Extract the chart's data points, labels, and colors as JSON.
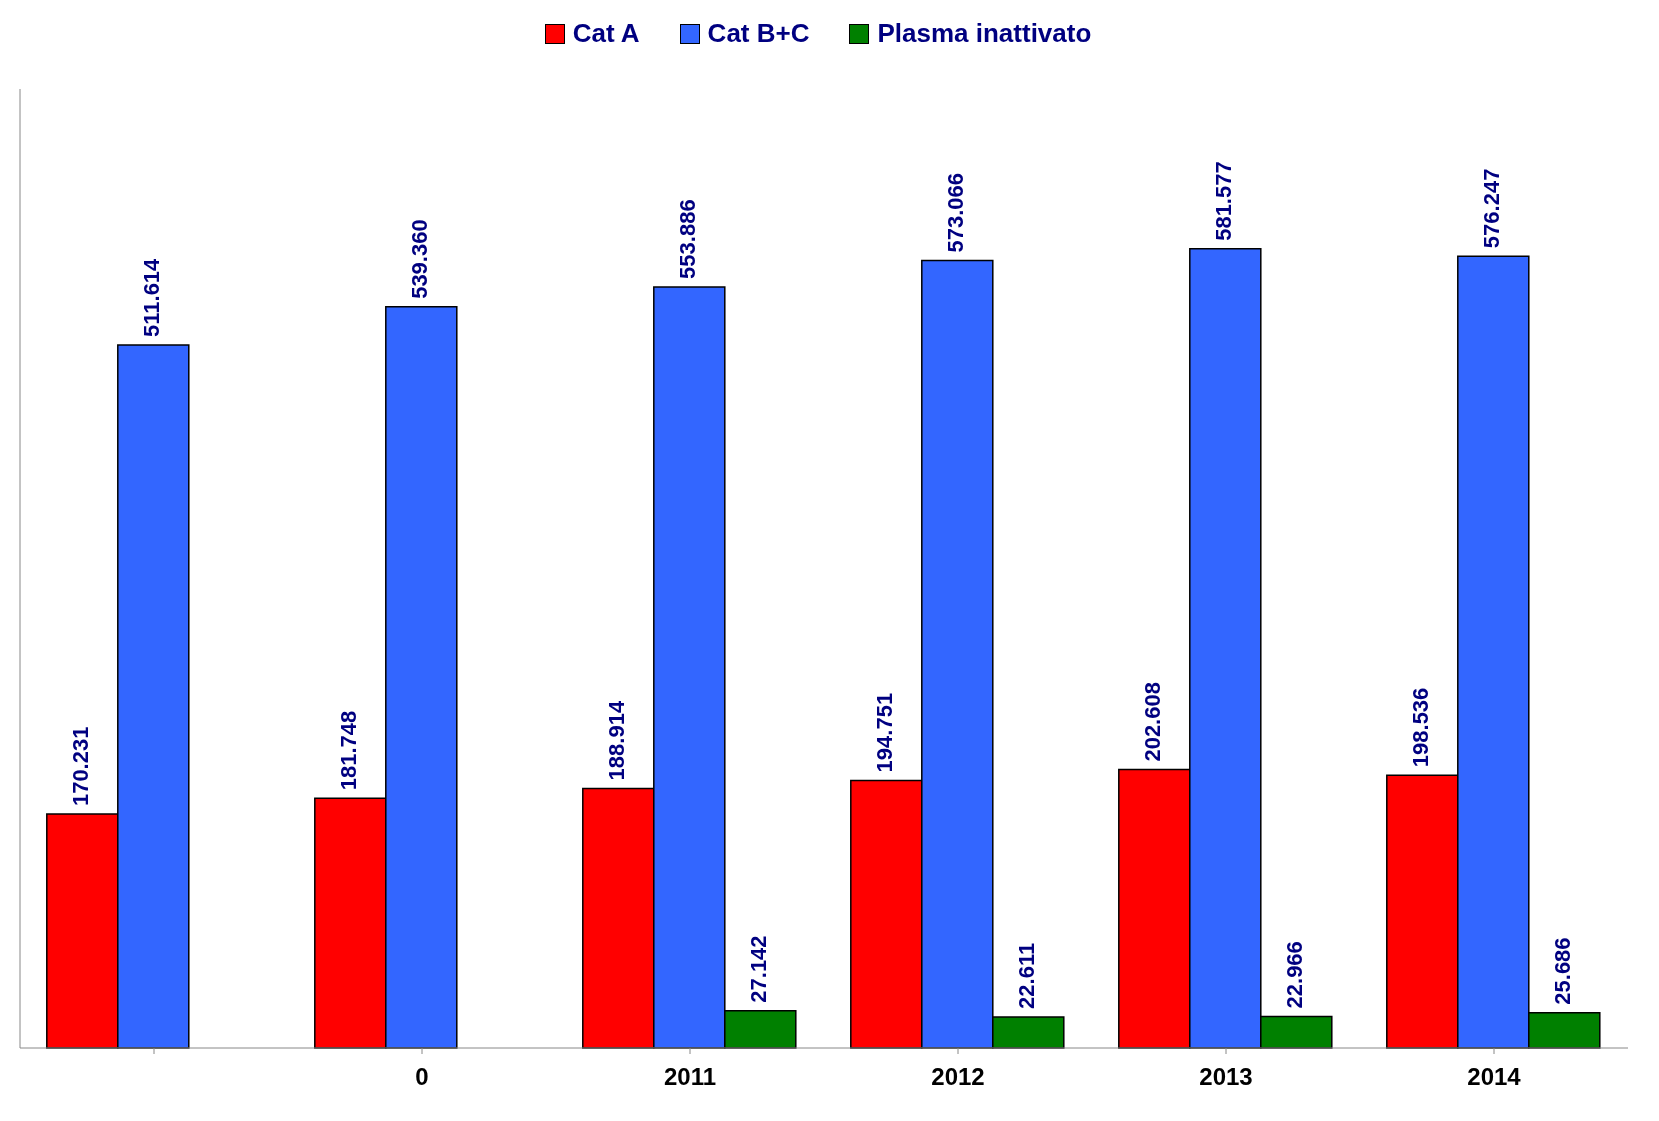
{
  "chart_data": {
    "type": "bar",
    "categories": [
      null,
      "0",
      "2011",
      "2012",
      "2013",
      "2014"
    ],
    "legend": "top",
    "series": [
      {
        "name": "Cat A",
        "color": "#ff0000",
        "values": [
          170231,
          181748,
          188914,
          194751,
          202608,
          198536
        ],
        "value_labels": [
          "170.231",
          "181.748",
          "188.914",
          "194.751",
          "202.608",
          "198.536"
        ]
      },
      {
        "name": "Cat B+C",
        "color": "#3366ff",
        "values": [
          511614,
          539360,
          553886,
          573066,
          581577,
          576247
        ],
        "value_labels": [
          "511.614",
          "539.360",
          "553.886",
          "573.066",
          "581.577",
          "576.247"
        ]
      },
      {
        "name": "Plasma inattivato",
        "color": "#008000",
        "values": [
          null,
          null,
          27142,
          22611,
          22966,
          25686
        ],
        "value_labels": [
          null,
          null,
          "27.142",
          "22.611",
          "22.966",
          "25.686"
        ]
      }
    ]
  }
}
